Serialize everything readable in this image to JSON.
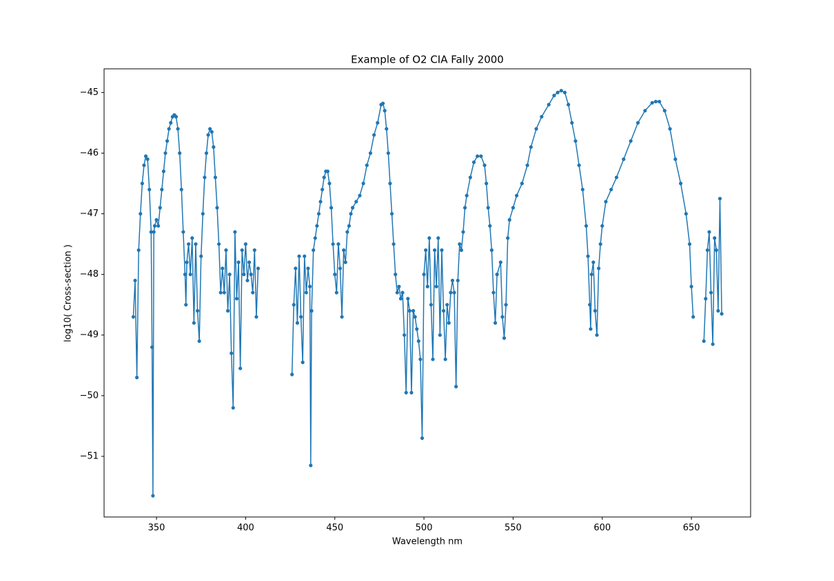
{
  "chart_data": {
    "type": "line",
    "title": "Example of O2 CIA Fally 2000",
    "x_label": "Wavelength nm",
    "y_label": "log10( Cross-section )",
    "xlim": [
      320.6,
      683.2
    ],
    "ylim": [
      -52.0,
      -44.61
    ],
    "xticks": [
      350,
      400,
      450,
      500,
      550,
      600,
      650
    ],
    "yticks": [
      {
        "value": -51,
        "label": "−51"
      },
      {
        "value": -50,
        "label": "−50"
      },
      {
        "value": -49,
        "label": "−49"
      },
      {
        "value": -48,
        "label": "−48"
      },
      {
        "value": -47,
        "label": "−47"
      },
      {
        "value": -46,
        "label": "−46"
      },
      {
        "value": -45,
        "label": "−45"
      }
    ],
    "grid": false,
    "x": [
      337,
      338,
      339,
      340,
      341,
      342,
      343,
      344,
      345,
      346,
      347,
      347.5,
      348,
      348.5,
      349,
      350,
      351,
      352,
      353,
      354,
      355,
      356,
      357,
      358,
      359,
      360,
      361,
      362,
      363,
      364,
      365,
      366,
      366.5,
      367,
      368,
      369,
      370,
      371,
      372,
      373,
      374,
      375,
      376,
      377,
      378,
      379,
      380,
      381,
      382,
      383,
      384,
      385,
      386,
      387,
      388,
      389,
      390,
      391,
      392,
      393,
      394,
      395,
      396,
      397,
      398,
      399,
      400,
      401,
      402,
      403,
      404,
      405,
      406,
      407,
      416,
      426,
      427,
      428,
      429,
      430,
      431,
      432,
      433,
      434,
      435,
      436,
      436.5,
      437,
      438,
      439,
      440,
      441,
      442,
      443,
      444,
      445,
      446,
      447,
      448,
      449,
      450,
      451,
      452,
      453,
      454,
      455,
      456,
      457,
      458,
      459,
      460,
      462,
      464,
      466,
      468,
      470,
      472,
      474,
      476,
      477,
      478,
      479,
      480,
      481,
      482,
      483,
      484,
      485,
      486,
      487,
      488,
      489,
      490,
      491,
      492,
      493,
      494,
      495,
      496,
      497,
      498,
      499,
      500,
      501,
      502,
      503,
      504,
      505,
      506,
      507,
      508,
      509,
      510,
      511,
      512,
      513,
      514,
      515,
      516,
      517,
      518,
      519,
      520,
      521,
      522,
      523,
      524,
      526,
      528,
      530,
      532,
      534,
      535,
      536,
      537,
      538,
      539,
      540,
      541,
      543,
      544,
      545,
      546,
      547,
      548,
      550,
      552,
      555,
      558,
      560,
      563,
      566,
      570,
      573,
      575,
      577,
      579,
      581,
      583,
      585,
      587,
      589,
      591,
      592,
      593,
      593.5,
      594,
      595,
      596,
      597,
      598,
      599,
      600,
      602,
      605,
      608,
      612,
      616,
      620,
      624,
      628,
      630,
      632,
      635,
      638,
      641,
      644,
      647,
      649,
      650,
      651,
      654,
      657,
      658,
      659,
      660,
      661,
      662,
      663,
      664,
      665,
      666,
      667
    ],
    "series": [
      {
        "name": "O2 CIA",
        "color": "#1f77b4",
        "values": [
          -48.7,
          -48.1,
          -49.7,
          -47.6,
          -47.0,
          -46.5,
          -46.2,
          -46.05,
          -46.1,
          -46.6,
          -47.3,
          -49.2,
          -51.65,
          -47.3,
          -47.2,
          -47.1,
          -47.2,
          -46.9,
          -46.6,
          -46.3,
          -46.0,
          -45.8,
          -45.6,
          -45.5,
          -45.4,
          -45.37,
          -45.4,
          -45.6,
          -46.0,
          -46.6,
          -47.3,
          -48.0,
          -48.5,
          -47.8,
          -47.5,
          -48.0,
          -47.4,
          -48.8,
          -47.5,
          -48.6,
          -49.1,
          -47.7,
          -47.0,
          -46.4,
          -46.0,
          -45.7,
          -45.6,
          -45.65,
          -45.9,
          -46.4,
          -46.9,
          -47.5,
          -48.3,
          -47.9,
          -48.3,
          -47.6,
          -48.6,
          -48.0,
          -49.3,
          -50.2,
          -47.3,
          -48.4,
          -47.8,
          -49.55,
          -47.6,
          -48.0,
          -47.5,
          -48.1,
          -47.8,
          -48.0,
          -48.3,
          -47.6,
          -48.7,
          -47.9,
          null,
          -49.65,
          -48.5,
          -47.9,
          -48.8,
          -47.7,
          -48.7,
          -49.45,
          -47.7,
          -48.3,
          -47.9,
          -48.2,
          -51.15,
          -48.6,
          -47.6,
          -47.4,
          -47.2,
          -47.0,
          -46.8,
          -46.6,
          -46.4,
          -46.3,
          -46.3,
          -46.5,
          -46.9,
          -47.5,
          -48.0,
          -48.3,
          -47.5,
          -47.9,
          -48.7,
          -47.6,
          -47.8,
          -47.3,
          -47.2,
          -47.0,
          -46.9,
          -46.8,
          -46.7,
          -46.5,
          -46.2,
          -46.0,
          -45.7,
          -45.5,
          -45.2,
          -45.18,
          -45.3,
          -45.6,
          -46.0,
          -46.5,
          -47.0,
          -47.5,
          -48.0,
          -48.3,
          -48.2,
          -48.4,
          -48.3,
          -49.0,
          -49.95,
          -48.4,
          -48.6,
          -49.95,
          -48.6,
          -48.7,
          -48.9,
          -49.1,
          -49.4,
          -50.7,
          -48.0,
          -47.6,
          -48.2,
          -47.4,
          -48.5,
          -49.4,
          -47.6,
          -48.2,
          -47.4,
          -49.0,
          -47.6,
          -48.6,
          -49.4,
          -48.5,
          -48.8,
          -48.3,
          -48.1,
          -48.3,
          -49.85,
          -48.1,
          -47.5,
          -47.6,
          -47.3,
          -46.9,
          -46.7,
          -46.4,
          -46.15,
          -46.05,
          -46.05,
          -46.2,
          -46.5,
          -46.9,
          -47.2,
          -47.6,
          -48.3,
          -48.8,
          -48.0,
          -47.8,
          -48.7,
          -49.05,
          -48.5,
          -47.4,
          -47.1,
          -46.9,
          -46.7,
          -46.5,
          -46.2,
          -45.9,
          -45.6,
          -45.4,
          -45.2,
          -45.05,
          -45.0,
          -44.97,
          -45.0,
          -45.2,
          -45.5,
          -45.8,
          -46.2,
          -46.6,
          -47.2,
          -47.7,
          -48.5,
          -48.9,
          -48.0,
          -47.8,
          -48.6,
          -49.0,
          -47.9,
          -47.5,
          -47.2,
          -46.8,
          -46.6,
          -46.4,
          -46.1,
          -45.8,
          -45.5,
          -45.3,
          -45.17,
          -45.15,
          -45.15,
          -45.3,
          -45.6,
          -46.1,
          -46.5,
          -47.0,
          -47.5,
          -48.2,
          -48.7,
          null,
          -49.1,
          -48.4,
          -47.6,
          -47.3,
          -48.3,
          -49.15,
          -47.4,
          -47.6,
          -48.6,
          -46.75,
          -48.65
        ]
      }
    ]
  }
}
